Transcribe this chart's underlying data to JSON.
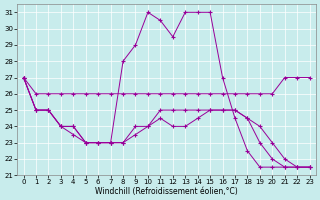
{
  "xlabel": "Windchill (Refroidissement éolien,°C)",
  "bg_color": "#c8ecec",
  "line_color": "#990099",
  "grid_color": "#ffffff",
  "xlim": [
    -0.5,
    23.5
  ],
  "ylim": [
    21,
    31.5
  ],
  "yticks": [
    21,
    22,
    23,
    24,
    25,
    26,
    27,
    28,
    29,
    30,
    31
  ],
  "xticks": [
    0,
    1,
    2,
    3,
    4,
    5,
    6,
    7,
    8,
    9,
    10,
    11,
    12,
    13,
    14,
    15,
    16,
    17,
    18,
    19,
    20,
    21,
    22,
    23
  ],
  "lines": [
    {
      "x": [
        0,
        1,
        2,
        3,
        4,
        5,
        6,
        7,
        8,
        9,
        10,
        11,
        12,
        13,
        14,
        15,
        16,
        17,
        18,
        19,
        20,
        21,
        22,
        23
      ],
      "y": [
        27,
        26,
        26,
        26,
        26,
        26,
        26,
        26,
        26,
        26,
        26,
        26,
        26,
        26,
        26,
        26,
        26,
        26,
        26,
        26,
        26,
        27,
        27,
        27
      ]
    },
    {
      "x": [
        0,
        1,
        2,
        3,
        4,
        5,
        6,
        7,
        8,
        9,
        10,
        11,
        12,
        13,
        14,
        15,
        16,
        17,
        18,
        19,
        20,
        21,
        22,
        23
      ],
      "y": [
        27,
        25,
        25,
        24,
        24,
        23,
        23,
        23,
        23,
        24,
        24,
        25,
        25,
        25,
        25,
        25,
        25,
        25,
        24.5,
        24,
        23,
        22,
        21.5,
        21.5
      ]
    },
    {
      "x": [
        0,
        1,
        2,
        3,
        4,
        5,
        6,
        7,
        8,
        9,
        10,
        11,
        12,
        13,
        14,
        15,
        16,
        17,
        18,
        19,
        20,
        21,
        22,
        23
      ],
      "y": [
        27,
        25,
        25,
        24,
        24,
        23,
        23,
        23,
        28,
        29,
        31,
        30.5,
        29.5,
        31,
        31,
        31,
        27,
        24.5,
        22.5,
        21.5,
        21.5,
        21.5,
        21.5,
        21.5
      ]
    },
    {
      "x": [
        0,
        1,
        2,
        3,
        4,
        5,
        6,
        7,
        8,
        9,
        10,
        11,
        12,
        13,
        14,
        15,
        16,
        17,
        18,
        19,
        20,
        21,
        22,
        23
      ],
      "y": [
        27,
        25,
        25,
        24,
        23.5,
        23,
        23,
        23,
        23,
        23.5,
        24,
        24.5,
        24,
        24,
        24.5,
        25,
        25,
        25,
        24.5,
        23,
        22,
        21.5,
        21.5,
        21.5
      ]
    }
  ]
}
